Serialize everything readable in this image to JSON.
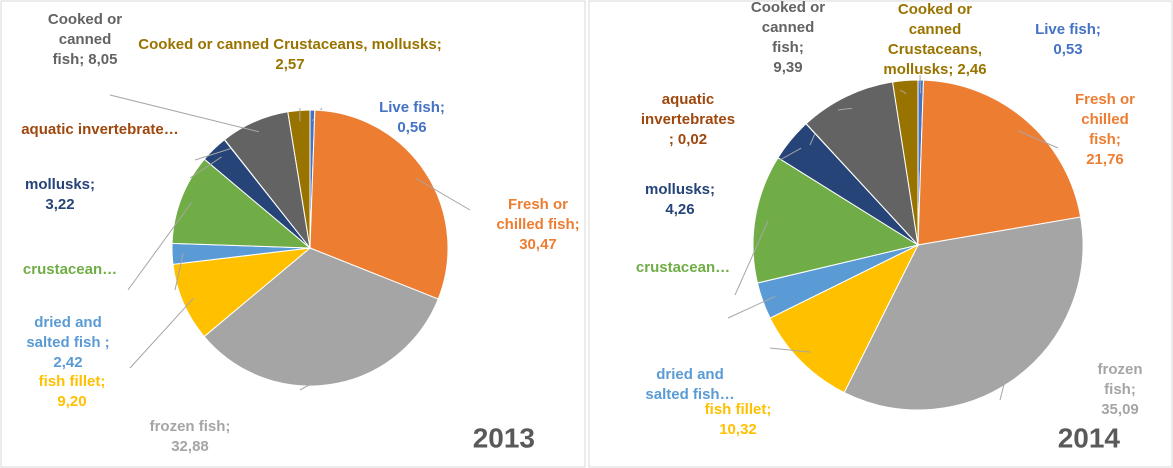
{
  "chart_data": [
    {
      "type": "pie",
      "title": "2013",
      "categories": [
        "Live fish;",
        "Fresh or chilled fish;",
        "frozen fish;",
        "fish fillet;",
        "dried and salted fish ;",
        "crustacean…",
        "mollusks;",
        "aquatic invertebrate…",
        "Cooked or canned fish;",
        "Cooked or canned Crustaceans, mollusks;"
      ],
      "values": [
        0.56,
        30.47,
        32.88,
        9.2,
        2.42,
        10.6,
        3.22,
        0.03,
        8.05,
        2.57
      ],
      "value_labels": [
        "0,56",
        "30,47",
        "32,88",
        "9,20",
        "2,42",
        null,
        "3,22",
        null,
        "8,05",
        "2,57"
      ],
      "colors": [
        "#4472c4",
        "#ed7d31",
        "#a5a5a5",
        "#ffc000",
        "#5b9bd5",
        "#70ad47",
        "#264478",
        "#9e480e",
        "#636363",
        "#997300"
      ]
    },
    {
      "type": "pie",
      "title": "2014",
      "categories": [
        "Live fish;",
        "Fresh or chilled fish;",
        "frozen fish;",
        "fish fillet;",
        "dried and salted fish…",
        "crustacean…",
        "mollusks;",
        "aquatic invertebrates ;",
        "Cooked or canned fish;",
        "Cooked or canned Crustaceans, mollusks;"
      ],
      "values": [
        0.53,
        21.76,
        35.09,
        10.32,
        3.6,
        12.57,
        4.26,
        0.02,
        9.39,
        2.46
      ],
      "value_labels": [
        "0,53",
        "21,76",
        "35,09",
        "10,32",
        null,
        null,
        "4,26",
        "0,02",
        "9,39",
        "2,46"
      ],
      "colors": [
        "#4472c4",
        "#ed7d31",
        "#a5a5a5",
        "#ffc000",
        "#5b9bd5",
        "#70ad47",
        "#264478",
        "#9e480e",
        "#636363",
        "#997300"
      ]
    }
  ]
}
